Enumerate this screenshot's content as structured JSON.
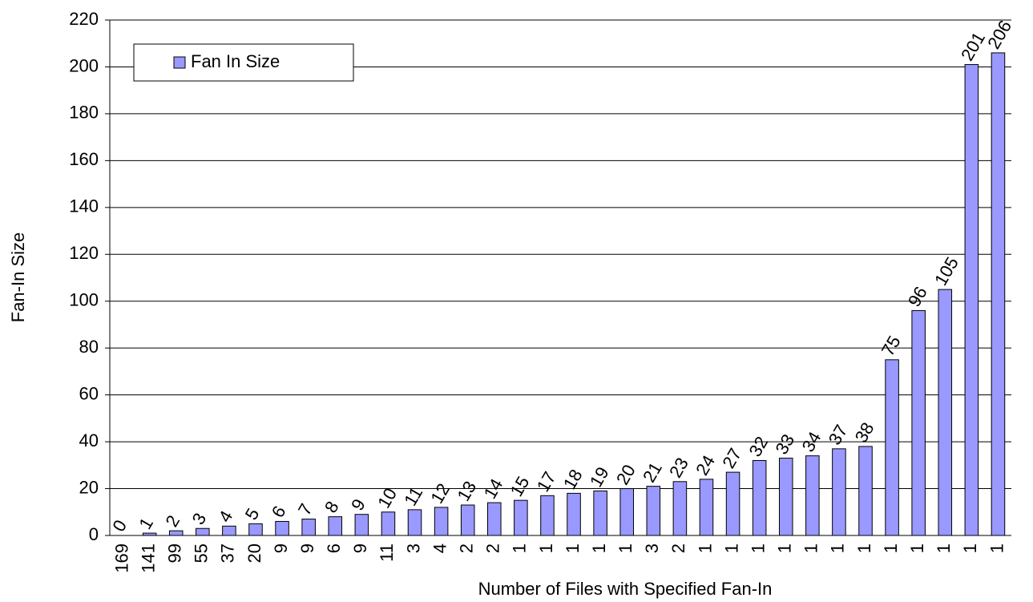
{
  "chart_data": {
    "type": "bar",
    "xlabel": "Number of Files with Specified Fan-In",
    "ylabel": "Fan-In Size",
    "categories": [
      "169",
      "141",
      "99",
      "55",
      "37",
      "20",
      "9",
      "9",
      "6",
      "9",
      "11",
      "3",
      "4",
      "2",
      "2",
      "1",
      "1",
      "1",
      "1",
      "1",
      "3",
      "2",
      "1",
      "1",
      "1",
      "1",
      "1",
      "1",
      "1",
      "1",
      "1",
      "1",
      "1",
      "1"
    ],
    "series": [
      {
        "name": "Fan In Size",
        "color": "#9999ff",
        "values": [
          0,
          1,
          2,
          3,
          4,
          5,
          6,
          7,
          8,
          9,
          10,
          11,
          12,
          13,
          14,
          15,
          17,
          18,
          19,
          20,
          21,
          23,
          24,
          27,
          32,
          33,
          34,
          37,
          38,
          75,
          96,
          105,
          201,
          206
        ]
      }
    ],
    "ylim": [
      0,
      220
    ],
    "yticks": [
      0,
      20,
      40,
      60,
      80,
      100,
      120,
      140,
      160,
      180,
      200,
      220
    ],
    "grid": true,
    "legend": "top-left"
  }
}
